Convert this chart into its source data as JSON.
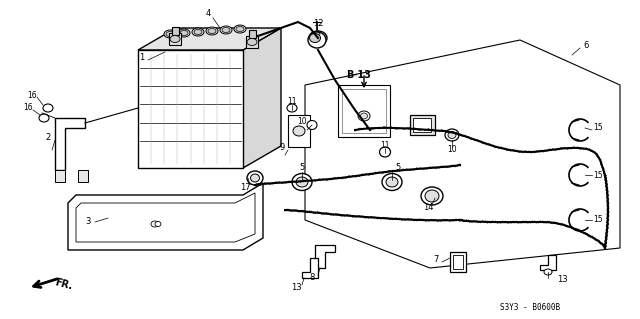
{
  "bg_color": "#ffffff",
  "line_color": "#000000",
  "ref_code": "S3Y3 - B0600B",
  "figsize": [
    6.4,
    3.19
  ],
  "dpi": 100
}
